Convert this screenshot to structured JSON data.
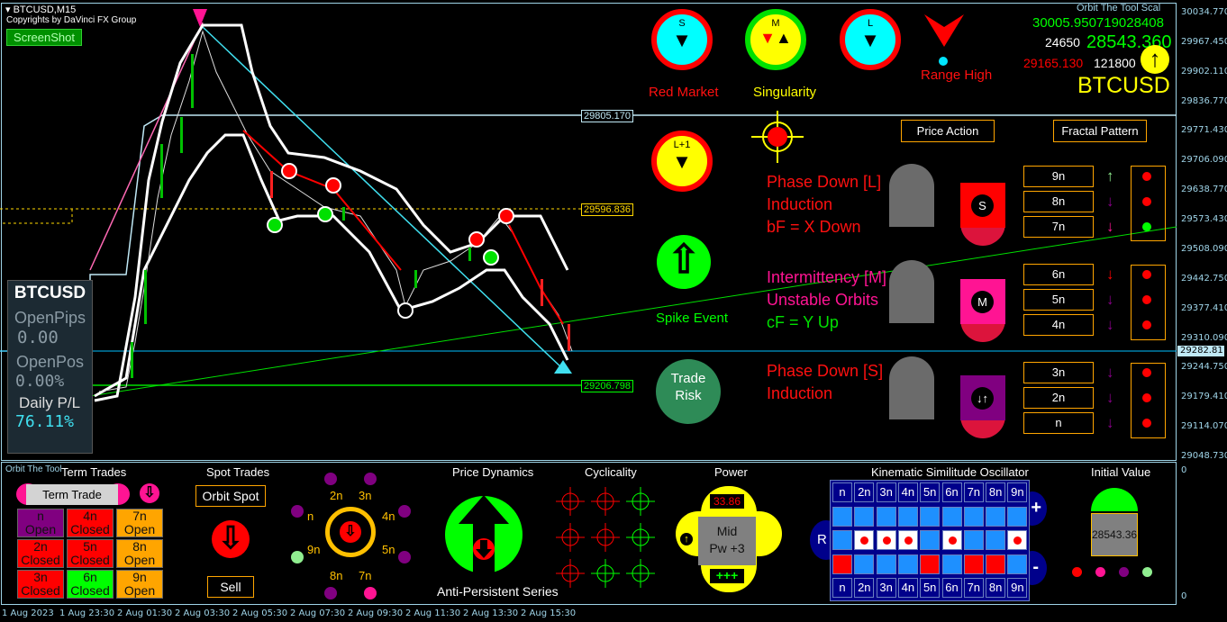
{
  "header": {
    "symbol_timeframe": "BTCUSD,M15",
    "copyright": "Copyrights by DaVinci FX Group",
    "screenshot_button": "ScreenShot",
    "panel_name": "Orbit The Tool  Scal"
  },
  "price_axis": {
    "ticks": [
      "30034.770",
      "29967.450",
      "29902.110",
      "29836.770",
      "29771.430",
      "29706.090",
      "29638.770",
      "29573.430",
      "29508.090",
      "29442.750",
      "29377.410",
      "29310.090",
      "29244.750",
      "29179.410",
      "29114.070",
      "29048.730"
    ],
    "current": "29282.811",
    "sub_ticks": [
      "0",
      "0"
    ]
  },
  "time_axis": [
    "1 Aug 2023",
    "1 Aug 23:30",
    "2 Aug 01:30",
    "2 Aug 03:30",
    "2 Aug 05:30",
    "2 Aug 07:30",
    "2 Aug 09:30",
    "2 Aug 11:30",
    "2 Aug 13:30",
    "2 Aug 15:30"
  ],
  "levels": {
    "upper": "29805.170",
    "mid": "29596.836",
    "lower": "29206.798"
  },
  "account": {
    "symbol": "BTCUSD",
    "open_pips_label": "OpenPips",
    "open_pips": "0.00",
    "open_pos_label": "OpenPos",
    "open_pos": "0.00%",
    "daily_pl_label": "Daily P/L",
    "daily_pl": "76.11%"
  },
  "quotes": {
    "line1": "30005.950719028408",
    "line2_left": "24650",
    "line2_right": "28543.360",
    "line3_left": "29165.130",
    "line3_right": "121800",
    "symbol": "BTCUSD"
  },
  "signals": {
    "s_label": "S",
    "m_label": "M",
    "l_label": "L",
    "l1_label": "L+1",
    "red_market": "Red Market",
    "singularity": "Singularity",
    "range_high": "Range High",
    "spike_event": "Spike Event",
    "trade_risk": "Trade Risk",
    "price_action": "Price Action",
    "fractal_pattern": "Fractal Pattern"
  },
  "phases": [
    {
      "lines": [
        "Phase Down [L]",
        "Induction",
        "bF = X Down"
      ],
      "colors": [
        "#ff1010",
        "#ff1010",
        "#ff1010"
      ],
      "badge": "S",
      "badge_color": "#ff0000"
    },
    {
      "lines": [
        "Intermittency [M]",
        "Unstable Orbits",
        "cF = Y Up"
      ],
      "colors": [
        "#ff1493",
        "#ff1493",
        "#00e000"
      ],
      "badge": "M",
      "badge_color": "#ff1493"
    },
    {
      "lines": [
        "Phase Down [S]",
        "Induction"
      ],
      "colors": [
        "#ff1010",
        "#ff1010"
      ],
      "badge": "↓↑",
      "badge_color": "#800080"
    }
  ],
  "fractal_buttons": [
    {
      "label": "9n",
      "arrow": "up",
      "color": "#90ee90",
      "dot": "#ff0000"
    },
    {
      "label": "8n",
      "arrow": "down",
      "color": "#8b008b",
      "dot": "#ff0000"
    },
    {
      "label": "7n",
      "arrow": "down",
      "color": "#ff1493",
      "dot": "#00ff00"
    },
    {
      "label": "6n",
      "arrow": "down",
      "color": "#ff0000",
      "dot": "#ff0000"
    },
    {
      "label": "5n",
      "arrow": "down",
      "color": "#8b008b",
      "dot": "#ff0000"
    },
    {
      "label": "4n",
      "arrow": "down",
      "color": "#8b008b",
      "dot": "#ff0000"
    },
    {
      "label": "3n",
      "arrow": "down",
      "color": "#8b008b",
      "dot": "#ff0000"
    },
    {
      "label": "2n",
      "arrow": "down",
      "color": "#8b008b",
      "dot": "#ff0000"
    },
    {
      "label": "n",
      "arrow": "down",
      "color": "#8b008b",
      "dot": "#ff0000"
    }
  ],
  "term_trades": {
    "title": "Term Trades",
    "tool_label": "Orbit The Tool",
    "hold_button": "Term Trade [Hold]",
    "cells": [
      {
        "n": "n",
        "status": "Open",
        "color": "#800080"
      },
      {
        "n": "4n",
        "status": "Closed",
        "color": "#ff0000"
      },
      {
        "n": "7n",
        "status": "Open",
        "color": "#ffa500"
      },
      {
        "n": "2n",
        "status": "Closed",
        "color": "#ff0000"
      },
      {
        "n": "5n",
        "status": "Closed",
        "color": "#ff0000"
      },
      {
        "n": "8n",
        "status": "Open",
        "color": "#ffa500"
      },
      {
        "n": "3n",
        "status": "Closed",
        "color": "#ff0000"
      },
      {
        "n": "6n",
        "status": "Closed",
        "color": "#00ff00"
      },
      {
        "n": "9n",
        "status": "Open",
        "color": "#ffa500"
      }
    ]
  },
  "spot_trades": {
    "title": "Spot Trades",
    "orbit_spot": "Orbit Spot",
    "sell": "Sell"
  },
  "orbit_ring": {
    "labels": [
      "2n",
      "3n",
      "n",
      "4n",
      "9n",
      "5n",
      "8n",
      "7n"
    ]
  },
  "price_dynamics": {
    "title": "Price Dynamics",
    "series": "Anti-Persistent Series"
  },
  "cyclicality": {
    "title": "Cyclicality",
    "grid": [
      "red",
      "red",
      "green",
      "red",
      "red",
      "green",
      "red",
      "green",
      "green"
    ]
  },
  "power": {
    "title": "Power",
    "value": "33.86",
    "state_line1": "Mid",
    "state_line2": "Pw +3",
    "strength": "+++"
  },
  "oscillator": {
    "title": "Kinematic Similitude Oscillator",
    "headers": [
      "n",
      "2n",
      "3n",
      "4n",
      "5n",
      "6n",
      "7n",
      "8n",
      "9n"
    ],
    "row_dots": [
      false,
      true,
      true,
      true,
      false,
      true,
      false,
      false,
      true
    ],
    "row_red": [
      true,
      false,
      false,
      false,
      true,
      false,
      true,
      true,
      false
    ],
    "r_label": "R",
    "plus": "+",
    "minus": "-"
  },
  "initial_value": {
    "title": "Initial Value",
    "value": "28543.360",
    "dots": [
      "#ff0000",
      "#ff1493",
      "#800080",
      "#90ee90"
    ]
  }
}
